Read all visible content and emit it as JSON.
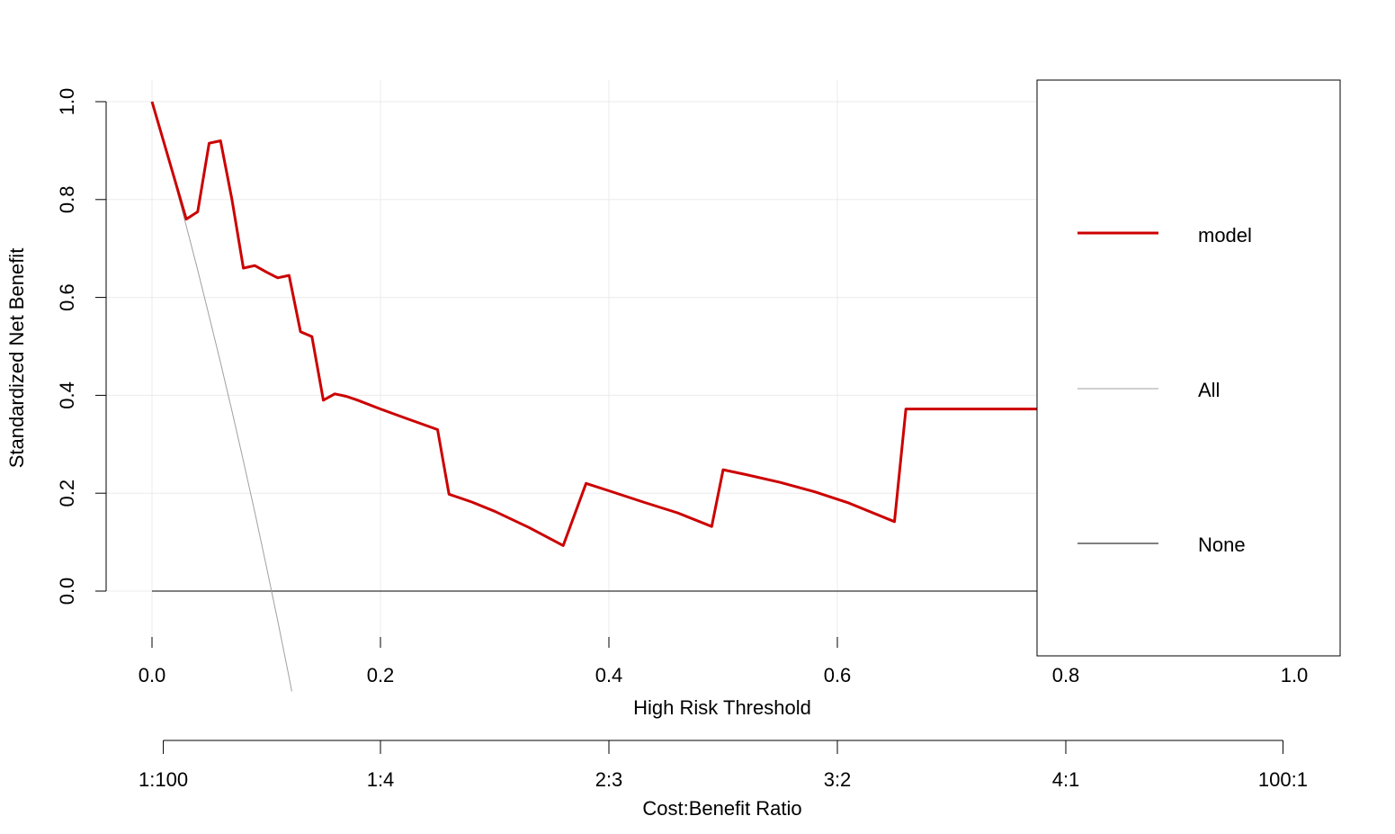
{
  "chart_data": {
    "type": "line",
    "xlabel": "High Risk Threshold",
    "ylabel": "Standardized Net Benefit",
    "secondary_xlabel": "Cost:Benefit Ratio",
    "xlim": [
      0,
      1
    ],
    "ylim": [
      -0.1,
      1.0
    ],
    "x_ticks": [
      0.0,
      0.2,
      0.4,
      0.6,
      0.8,
      1.0
    ],
    "x_tick_labels": [
      "0.0",
      "0.2",
      "0.4",
      "0.6",
      "0.8",
      "1.0"
    ],
    "y_ticks": [
      0.0,
      0.2,
      0.4,
      0.6,
      0.8,
      1.0
    ],
    "y_tick_labels": [
      "0.0",
      "0.2",
      "0.4",
      "0.6",
      "0.8",
      "1.0"
    ],
    "cost_benefit_ticks": [
      {
        "label": "1:100",
        "x": 0.0099
      },
      {
        "label": "1:4",
        "x": 0.2
      },
      {
        "label": "2:3",
        "x": 0.4
      },
      {
        "label": "3:2",
        "x": 0.6
      },
      {
        "label": "4:1",
        "x": 0.8
      },
      {
        "label": "100:1",
        "x": 0.9901
      }
    ],
    "grid": true,
    "legend_position": "right",
    "series": [
      {
        "name": "model",
        "color": "#cc0000",
        "x": [
          0.0,
          0.01,
          0.02,
          0.03,
          0.04,
          0.05,
          0.06,
          0.07,
          0.08,
          0.09,
          0.1,
          0.11,
          0.12,
          0.13,
          0.14,
          0.15,
          0.16,
          0.17,
          0.18,
          0.2,
          0.22,
          0.25,
          0.26,
          0.28,
          0.3,
          0.33,
          0.36,
          0.38,
          0.4,
          0.43,
          0.46,
          0.49,
          0.5,
          0.52,
          0.55,
          0.58,
          0.61,
          0.65,
          0.66,
          0.7,
          0.78
        ],
        "y": [
          1.0,
          0.92,
          0.84,
          0.76,
          0.775,
          0.915,
          0.92,
          0.8,
          0.66,
          0.665,
          0.652,
          0.64,
          0.645,
          0.53,
          0.52,
          0.39,
          0.403,
          0.398,
          0.39,
          0.372,
          0.355,
          0.33,
          0.198,
          0.182,
          0.163,
          0.13,
          0.093,
          0.22,
          0.205,
          0.182,
          0.16,
          0.132,
          0.248,
          0.238,
          0.222,
          0.203,
          0.18,
          0.142,
          0.372,
          0.372,
          0.372
        ]
      },
      {
        "name": "All",
        "color": "#a0a0a0",
        "x": [
          0.0,
          0.01,
          0.02,
          0.03,
          0.04,
          0.05,
          0.06,
          0.07,
          0.08,
          0.09,
          0.1,
          0.11,
          0.12,
          0.1224
        ],
        "y": [
          1.0,
          0.918,
          0.834,
          0.746,
          0.656,
          0.562,
          0.467,
          0.368,
          0.266,
          0.161,
          0.052,
          -0.06,
          -0.176,
          -0.205
        ]
      },
      {
        "name": "None",
        "color": "#000000",
        "x": [
          0.0,
          0.78
        ],
        "y": [
          0.0,
          0.0
        ]
      }
    ],
    "legend": [
      "model",
      "All",
      "None"
    ]
  }
}
